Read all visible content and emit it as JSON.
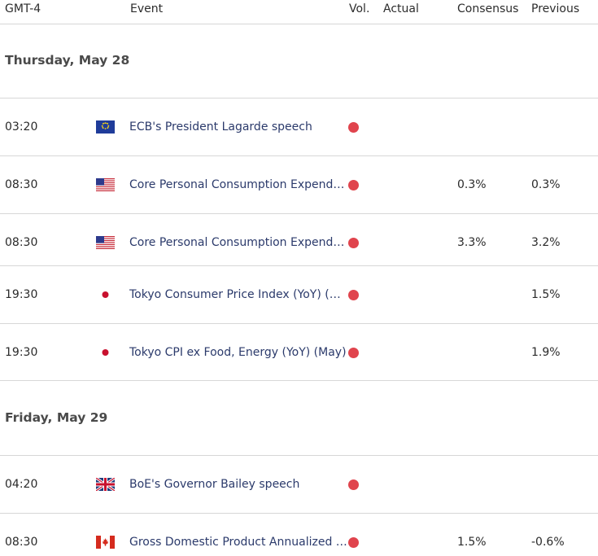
{
  "header": {
    "timezone": "GMT-4",
    "event": "Event",
    "vol": "Vol.",
    "actual": "Actual",
    "consensus": "Consensus",
    "previous": "Previous"
  },
  "days": [
    {
      "label": "Thursday, May 28",
      "rows": [
        {
          "time": "03:20",
          "flag": "eu-flag-icon",
          "event": "ECB's President Lagarde speech",
          "volatility": "high",
          "actual": "",
          "consensus": "",
          "previous": ""
        },
        {
          "time": "08:30",
          "flag": "us-flag-icon",
          "event": "Core Personal Consumption Expendit…",
          "volatility": "high",
          "actual": "",
          "consensus": "0.3%",
          "previous": "0.3%"
        },
        {
          "time": "08:30",
          "flag": "us-flag-icon",
          "event": "Core Personal Consumption Expendit…",
          "volatility": "high",
          "actual": "",
          "consensus": "3.3%",
          "previous": "3.2%"
        },
        {
          "time": "19:30",
          "flag": "jp-flag-icon",
          "event": "Tokyo Consumer Price Index (YoY) (M…",
          "volatility": "high",
          "actual": "",
          "consensus": "",
          "previous": "1.5%"
        },
        {
          "time": "19:30",
          "flag": "jp-flag-icon",
          "event": "Tokyo CPI ex Food, Energy (YoY) (May)",
          "volatility": "high",
          "actual": "",
          "consensus": "",
          "previous": "1.9%"
        }
      ]
    },
    {
      "label": "Friday, May 29",
      "rows": [
        {
          "time": "04:20",
          "flag": "uk-flag-icon",
          "event": "BoE's Governor Bailey speech",
          "volatility": "high",
          "actual": "",
          "consensus": "",
          "previous": ""
        },
        {
          "time": "08:30",
          "flag": "ca-flag-icon",
          "event": "Gross Domestic Product Annualized (…",
          "volatility": "high",
          "actual": "",
          "consensus": "1.5%",
          "previous": "-0.6%"
        }
      ]
    }
  ],
  "colors": {
    "high_volatility_dot": "#e0444d",
    "event_text": "#2b3a6b",
    "divider": "#d7d7d7"
  }
}
